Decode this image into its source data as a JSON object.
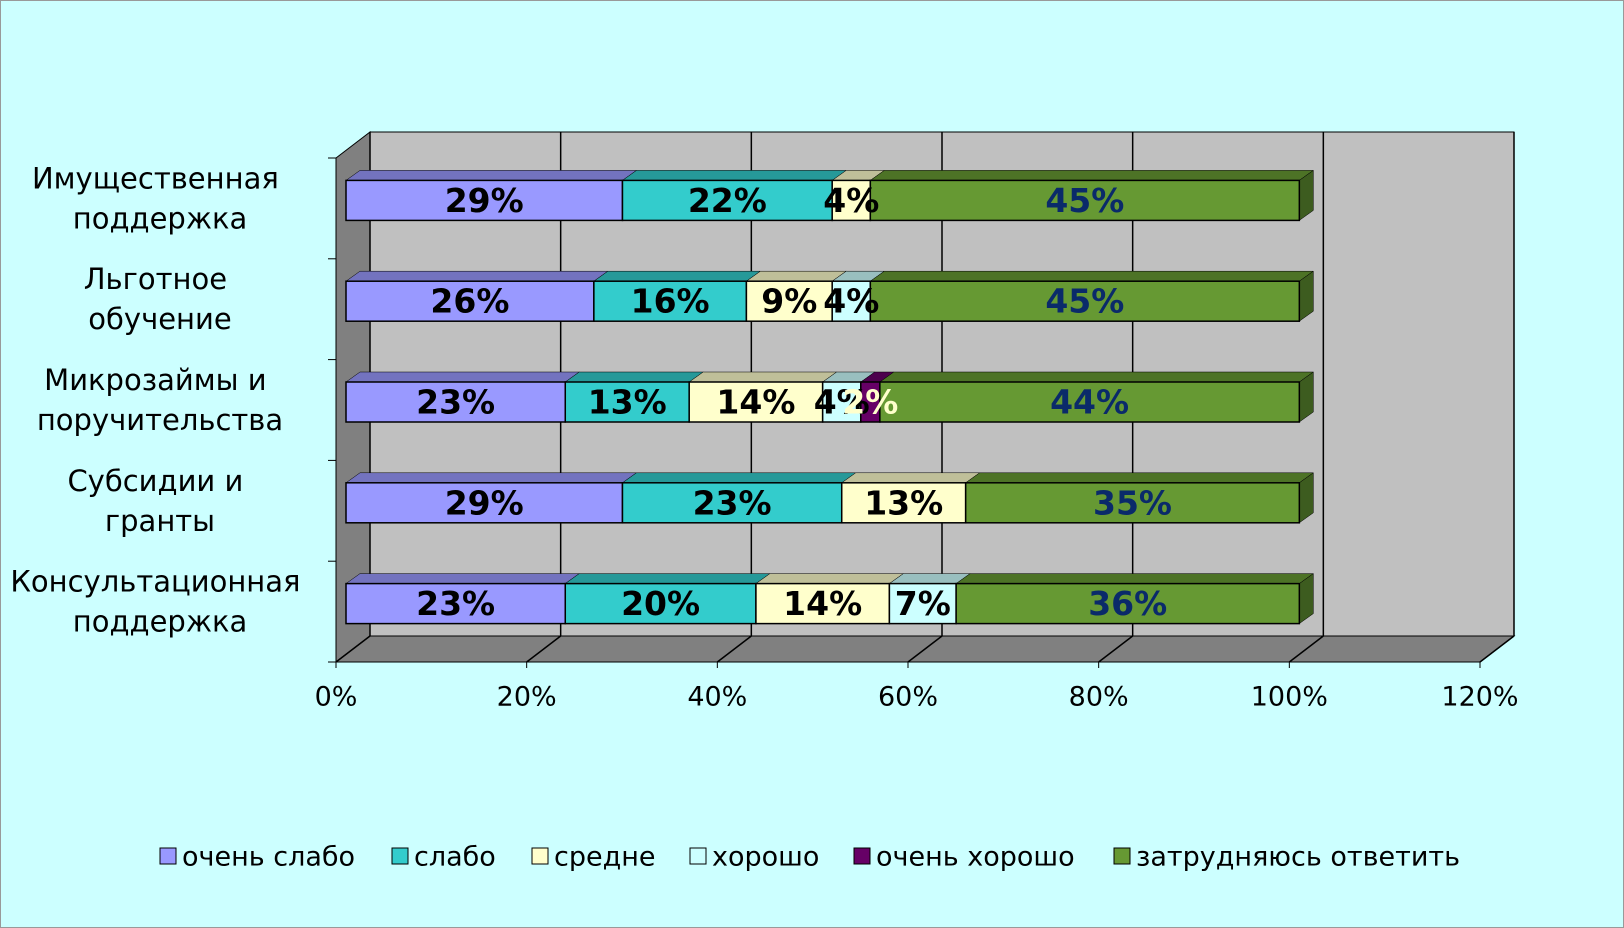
{
  "chart_data": {
    "type": "bar3d_stacked_horizontal",
    "categories": [
      "Имущественная поддержка",
      "Льготное обучение",
      "Микрозаймы и поручительства",
      "Субсидии и гранты",
      "Консультационная поддержка"
    ],
    "series": [
      {
        "name": "очень слабо",
        "color": "#9999ff",
        "label_color": "#000000",
        "values": [
          29,
          26,
          23,
          29,
          23
        ],
        "value_labels": [
          "29%",
          "26%",
          "23%",
          "29%",
          "23%"
        ]
      },
      {
        "name": "слабо",
        "color": "#33cccc",
        "label_color": "#000000",
        "values": [
          22,
          16,
          13,
          23,
          20
        ],
        "value_labels": [
          "22%",
          "16%",
          "13%",
          "23%",
          "20%"
        ]
      },
      {
        "name": "средне",
        "color": "#ffffcc",
        "label_color": "#000000",
        "values": [
          4,
          9,
          14,
          13,
          14
        ],
        "value_labels": [
          "4%",
          "9%",
          "14%",
          "13%",
          "14%"
        ]
      },
      {
        "name": "хорошо",
        "color": "#ccffff",
        "label_color": "#000000",
        "values": [
          null,
          4,
          4,
          null,
          7
        ],
        "value_labels": [
          null,
          "4%",
          "4%",
          null,
          "7%"
        ]
      },
      {
        "name": "очень хорошо",
        "color": "#660066",
        "label_color": "#ffffcc",
        "values": [
          null,
          null,
          2,
          null,
          null
        ],
        "value_labels": [
          null,
          null,
          "2%",
          null,
          null
        ]
      },
      {
        "name": "затрудняюсь ответить",
        "color": "#669933",
        "label_color": "#0a2a6a",
        "values": [
          45,
          45,
          44,
          35,
          36
        ],
        "value_labels": [
          "45%",
          "45%",
          "44%",
          "35%",
          "36%"
        ]
      }
    ],
    "xlim": [
      0,
      120
    ],
    "xticks": [
      {
        "value": 0,
        "label": "0%"
      },
      {
        "value": 20,
        "label": "20%"
      },
      {
        "value": 40,
        "label": "40%"
      },
      {
        "value": 60,
        "label": "60%"
      },
      {
        "value": 80,
        "label": "80%"
      },
      {
        "value": 100,
        "label": "100%"
      },
      {
        "value": 120,
        "label": "120%"
      }
    ],
    "grid": true,
    "legend": "bottom"
  }
}
